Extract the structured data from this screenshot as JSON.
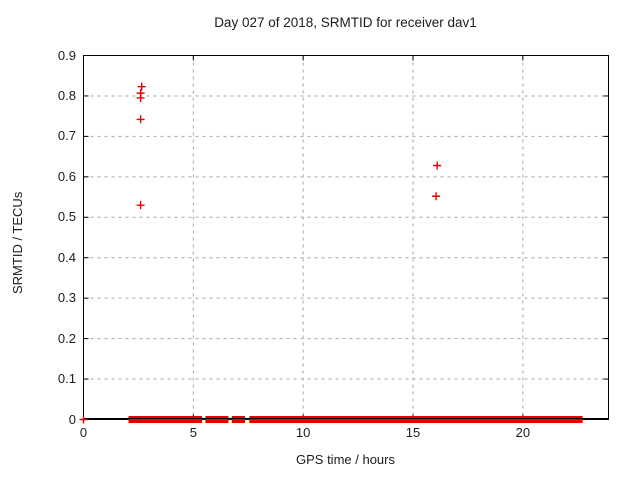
{
  "window": {
    "background_color": "#ffffff",
    "text_color": "#1c1c1c"
  },
  "chart_data": {
    "type": "scatter",
    "title": "Day 027 of 2018, SRMTID for receiver dav1",
    "xlabel": "GPS time / hours",
    "ylabel": "SRMTID / TECUs",
    "xlim": [
      0,
      23.9
    ],
    "ylim": [
      0,
      0.9
    ],
    "x_ticks": [
      {
        "value": 0,
        "label": "0"
      },
      {
        "value": 5,
        "label": "5"
      },
      {
        "value": 10,
        "label": "10"
      },
      {
        "value": 15,
        "label": "15"
      },
      {
        "value": 20,
        "label": "20"
      }
    ],
    "y_ticks": [
      {
        "value": 0.0,
        "label": "0"
      },
      {
        "value": 0.1,
        "label": "0.1"
      },
      {
        "value": 0.2,
        "label": "0.2"
      },
      {
        "value": 0.3,
        "label": "0.3"
      },
      {
        "value": 0.4,
        "label": "0.4"
      },
      {
        "value": 0.5,
        "label": "0.5"
      },
      {
        "value": 0.6,
        "label": "0.6"
      },
      {
        "value": 0.7,
        "label": "0.7"
      },
      {
        "value": 0.8,
        "label": "0.8"
      },
      {
        "value": 0.9,
        "label": "0.9"
      }
    ],
    "grid": true,
    "legend_position": "none",
    "marker_style": "plus",
    "marker_color": "#e60000",
    "grid_color": "#a6a6a6",
    "border_color": "#000000",
    "points": [
      {
        "x": 0.0,
        "y": 0.0
      },
      {
        "x": 2.65,
        "y": 0.823
      },
      {
        "x": 2.6,
        "y": 0.807
      },
      {
        "x": 2.6,
        "y": 0.795
      },
      {
        "x": 2.6,
        "y": 0.742
      },
      {
        "x": 2.6,
        "y": 0.53
      },
      {
        "x": 16.1,
        "y": 0.628
      },
      {
        "x": 16.05,
        "y": 0.552
      }
    ],
    "zero_band_segments": [
      [
        2.05,
        5.4
      ],
      [
        5.55,
        6.6
      ],
      [
        6.75,
        7.35
      ],
      [
        7.55,
        22.72
      ]
    ],
    "zero_band_note": "dense overlapping + markers at y = 0"
  }
}
